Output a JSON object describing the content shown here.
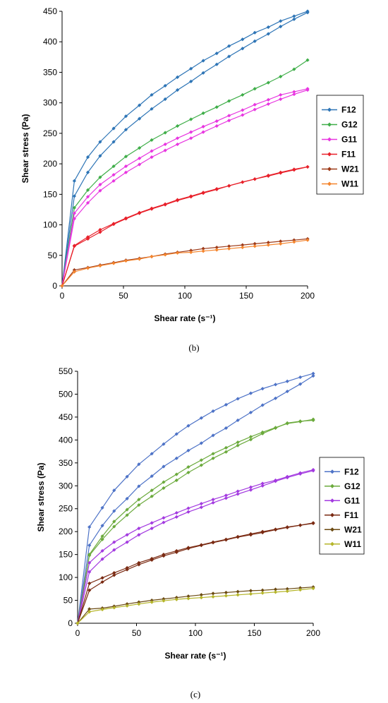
{
  "chart_data": [
    {
      "type": "line",
      "panel": "(b)",
      "xlabel": "Shear rate (s⁻¹)",
      "ylabel": "Shear stress (Pa)",
      "xlim": [
        0,
        200
      ],
      "ylim": [
        0,
        450
      ],
      "xticks": [
        0,
        50,
        100,
        150,
        200
      ],
      "yticks": [
        0,
        50,
        100,
        150,
        200,
        250,
        300,
        350,
        400,
        450
      ],
      "grid": false,
      "legend_position": "right",
      "x": [
        0,
        10,
        21,
        31,
        42,
        52,
        63,
        73,
        84,
        94,
        105,
        115,
        126,
        136,
        147,
        157,
        168,
        178,
        189,
        200
      ],
      "series": [
        {
          "name": "F12",
          "color": "#2E75B6",
          "up": [
            0,
            147,
            186,
            213,
            236,
            256,
            274,
            290,
            306,
            321,
            335,
            349,
            363,
            376,
            389,
            401,
            413,
            425,
            437,
            448
          ],
          "down": [
            0,
            172,
            211,
            236,
            258,
            278,
            296,
            313,
            328,
            342,
            356,
            369,
            381,
            393,
            404,
            415,
            424,
            434,
            442,
            450
          ]
        },
        {
          "name": "G12",
          "color": "#3FAE49",
          "up": [
            0,
            128,
            157,
            178,
            196,
            212,
            226,
            239,
            251,
            262,
            273,
            283,
            293,
            303,
            313,
            323,
            333,
            343,
            355,
            370
          ]
        },
        {
          "name": "G11",
          "color": "#E836E0",
          "up": [
            0,
            110,
            136,
            156,
            172,
            186,
            199,
            211,
            222,
            232,
            242,
            252,
            262,
            271,
            280,
            289,
            298,
            306,
            314,
            321
          ],
          "down": [
            0,
            119,
            146,
            166,
            182,
            196,
            209,
            221,
            232,
            242,
            252,
            261,
            270,
            279,
            288,
            297,
            305,
            313,
            318,
            323
          ]
        },
        {
          "name": "F11",
          "color": "#E8202A",
          "up": [
            0,
            65,
            77,
            88,
            101,
            110,
            119,
            126,
            133,
            140,
            146,
            152,
            158,
            164,
            170,
            175,
            180,
            185,
            190,
            195
          ],
          "down": [
            0,
            66,
            80,
            92,
            102,
            111,
            120,
            127,
            134,
            141,
            147,
            153,
            159,
            164,
            170,
            175,
            181,
            186,
            191,
            195
          ]
        },
        {
          "name": "W21",
          "color": "#9E3B19",
          "up": [
            0,
            26,
            30,
            34,
            38,
            42,
            45,
            48,
            52,
            55,
            58,
            61,
            63,
            65,
            67,
            69,
            71,
            73,
            75,
            77
          ]
        },
        {
          "name": "W11",
          "color": "#F4852E",
          "up": [
            0,
            23,
            29,
            33,
            37,
            41,
            44,
            48,
            51,
            54,
            55,
            57,
            59,
            61,
            63,
            65,
            67,
            69,
            72,
            75
          ]
        }
      ]
    },
    {
      "type": "line",
      "panel": "(c)",
      "xlabel": "Shear rate (s⁻¹)",
      "ylabel": "Shear stress (Pa)",
      "xlim": [
        0,
        200
      ],
      "ylim": [
        0,
        550
      ],
      "xticks": [
        0,
        50,
        100,
        150,
        200
      ],
      "yticks": [
        0,
        50,
        100,
        150,
        200,
        250,
        300,
        350,
        400,
        450,
        500,
        550
      ],
      "grid": false,
      "legend_position": "right",
      "x": [
        0,
        10,
        21,
        31,
        42,
        52,
        63,
        73,
        84,
        94,
        105,
        115,
        126,
        136,
        147,
        157,
        168,
        178,
        189,
        200
      ],
      "series": [
        {
          "name": "F12",
          "color": "#4E73C7",
          "up": [
            0,
            170,
            213,
            245,
            272,
            299,
            321,
            342,
            360,
            377,
            393,
            410,
            426,
            443,
            460,
            476,
            491,
            506,
            522,
            540
          ],
          "down": [
            0,
            210,
            252,
            290,
            320,
            347,
            370,
            391,
            413,
            431,
            448,
            463,
            477,
            490,
            502,
            512,
            521,
            528,
            537,
            545
          ]
        },
        {
          "name": "G12",
          "color": "#6BAA3C",
          "up": [
            0,
            150,
            190,
            222,
            248,
            270,
            290,
            308,
            325,
            341,
            356,
            370,
            383,
            395,
            407,
            417,
            427,
            436,
            440,
            445
          ],
          "down": [
            0,
            148,
            183,
            211,
            236,
            258,
            277,
            295,
            312,
            329,
            345,
            360,
            374,
            388,
            401,
            414,
            426,
            437,
            441,
            443
          ]
        },
        {
          "name": "G11",
          "color": "#A33AE0",
          "up": [
            0,
            112,
            140,
            160,
            177,
            193,
            207,
            220,
            232,
            243,
            253,
            263,
            273,
            282,
            291,
            300,
            310,
            318,
            326,
            333
          ],
          "down": [
            0,
            132,
            158,
            177,
            193,
            207,
            219,
            230,
            241,
            251,
            261,
            270,
            279,
            288,
            297,
            305,
            312,
            320,
            328,
            335
          ]
        },
        {
          "name": "F11",
          "color": "#7A2A12",
          "up": [
            0,
            72,
            90,
            105,
            117,
            128,
            138,
            147,
            155,
            163,
            170,
            176,
            182,
            188,
            193,
            198,
            204,
            209,
            214,
            218
          ],
          "down": [
            0,
            87,
            99,
            110,
            121,
            132,
            141,
            150,
            158,
            165,
            171,
            177,
            183,
            189,
            195,
            200,
            205,
            210,
            214,
            219
          ]
        },
        {
          "name": "W21",
          "color": "#6B4A12",
          "up": [
            0,
            31,
            33,
            37,
            42,
            46,
            50,
            53,
            56,
            59,
            62,
            65,
            67,
            69,
            71,
            72,
            74,
            75,
            77,
            79
          ]
        },
        {
          "name": "W11",
          "color": "#B5B52A",
          "up": [
            0,
            25,
            30,
            34,
            38,
            42,
            46,
            49,
            52,
            54,
            56,
            58,
            60,
            62,
            64,
            66,
            68,
            70,
            73,
            76
          ]
        }
      ]
    }
  ]
}
